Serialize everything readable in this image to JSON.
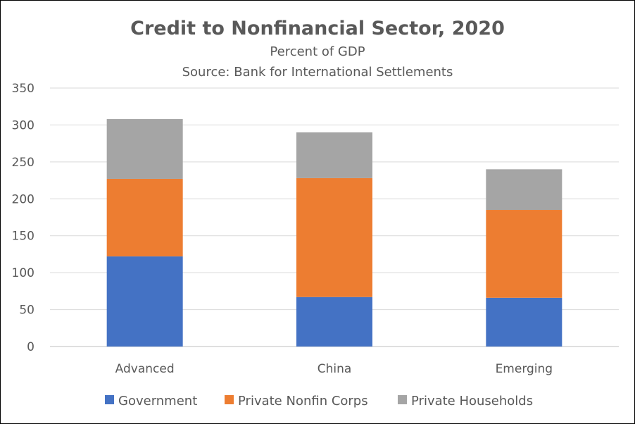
{
  "chart_data": {
    "type": "bar",
    "stacked": true,
    "title": "Credit to Nonfinancial Sector, 2020",
    "subtitle": "Percent of GDP",
    "source": "Source:  Bank for International Settlements",
    "xlabel": "",
    "ylabel": "",
    "categories": [
      "Advanced",
      "China",
      "Emerging"
    ],
    "ylim": [
      0,
      350
    ],
    "yticks": [
      0,
      50,
      100,
      150,
      200,
      250,
      300,
      350
    ],
    "grid": true,
    "legend_position": "bottom",
    "series": [
      {
        "name": "Government",
        "color": "#4472c4",
        "values": [
          122,
          67,
          66
        ]
      },
      {
        "name": "Private Nonfin Corps",
        "color": "#ed7d31",
        "values": [
          105,
          161,
          119
        ]
      },
      {
        "name": "Private Households",
        "color": "#a5a5a5",
        "values": [
          81,
          62,
          55
        ]
      }
    ]
  }
}
